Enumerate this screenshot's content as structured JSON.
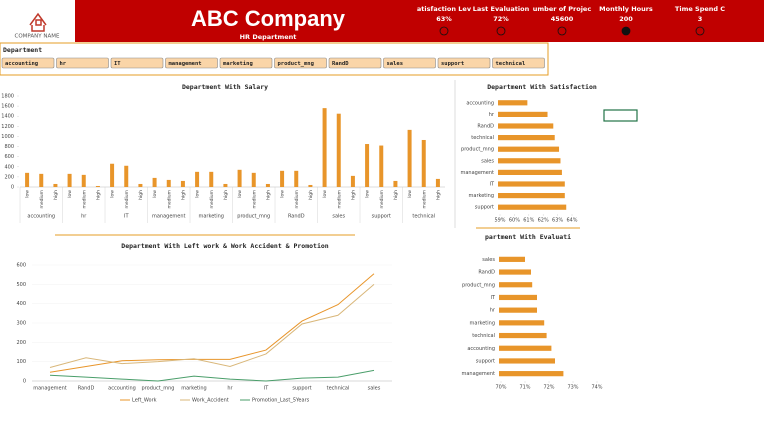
{
  "header": {
    "logo_text": "COMPANY NAME",
    "title": "ABC Company",
    "subtitle": "HR Department",
    "kpis": [
      {
        "label": "atisfaction Lev",
        "value": "63%"
      },
      {
        "label": "Last Evaluation",
        "value": "72%"
      },
      {
        "label": "umber of Projec",
        "value": "45600"
      },
      {
        "label": "Monthly Hours",
        "value": "200"
      },
      {
        "label": "Time Spend C",
        "value": "3"
      }
    ]
  },
  "slicer": {
    "title": "Department",
    "items": [
      "accounting",
      "hr",
      "IT",
      "management",
      "marketing",
      "product_mng",
      "RandD",
      "sales",
      "support",
      "technical"
    ]
  },
  "chart_data": [
    {
      "type": "bar",
      "title": "Department With Salary",
      "groups": [
        "accounting",
        "hr",
        "IT",
        "management",
        "marketing",
        "product_mng",
        "RandD",
        "sales",
        "support",
        "technical"
      ],
      "categories": [
        "low",
        "medium",
        "high",
        "low",
        "medium",
        "high",
        "low",
        "medium",
        "high",
        "low",
        "medium",
        "high",
        "low",
        "medium",
        "high",
        "low",
        "medium",
        "high",
        "low",
        "medium",
        "high",
        "low",
        "medium",
        "high",
        "low",
        "medium",
        "high",
        "low",
        "medium",
        "high"
      ],
      "values": [
        280,
        260,
        60,
        260,
        240,
        20,
        460,
        420,
        60,
        180,
        140,
        120,
        300,
        300,
        60,
        340,
        280,
        60,
        320,
        320,
        40,
        1560,
        1450,
        220,
        850,
        820,
        120,
        1130,
        930,
        160
      ],
      "color": "#e8952a",
      "ylim": [
        0,
        1800
      ],
      "yticks": [
        0,
        200,
        400,
        600,
        800,
        1000,
        1200,
        1400,
        1600,
        1800
      ]
    },
    {
      "type": "hbar",
      "title": "Department With Satisfaction",
      "categories": [
        "accounting",
        "hr",
        "RandD",
        "technical",
        "product_mng",
        "sales",
        "management",
        "IT",
        "marketing",
        "support"
      ],
      "values": [
        60.9,
        62.3,
        62.7,
        62.8,
        63.1,
        63.2,
        63.3,
        63.5,
        63.5,
        63.6
      ],
      "color": "#e8952a",
      "xlim": [
        59,
        64
      ],
      "xticks": [
        {
          "value": 59,
          "label": "59%"
        },
        {
          "value": 60,
          "label": "60%"
        },
        {
          "value": 61,
          "label": "61%"
        },
        {
          "value": 62,
          "label": "62%"
        },
        {
          "value": 63,
          "label": "63%"
        },
        {
          "value": 64,
          "label": "64%"
        }
      ]
    },
    {
      "type": "line",
      "title": "Department With Left work & Work Accident  & Promotion",
      "categories": [
        "management",
        "RandD",
        "accounting",
        "product_mng",
        "marketing",
        "hr",
        "IT",
        "support",
        "technical",
        "sales"
      ],
      "series": [
        {
          "name": "Left_Work",
          "color": "#e8952a",
          "values": [
            45,
            75,
            105,
            110,
            112,
            112,
            160,
            310,
            395,
            555
          ]
        },
        {
          "name": "Work_Accident",
          "color": "#d9b77a",
          "values": [
            70,
            120,
            90,
            100,
            115,
            75,
            140,
            295,
            340,
            500
          ]
        },
        {
          "name": "Promotion_Last_5Years",
          "color": "#4a9e6a",
          "values": [
            30,
            20,
            10,
            0,
            25,
            10,
            0,
            15,
            20,
            55
          ]
        }
      ],
      "ylim": [
        0,
        600
      ],
      "yticks": [
        0,
        100,
        200,
        300,
        400,
        500,
        600
      ]
    },
    {
      "type": "hbar",
      "title": "partment With Evaluati",
      "categories": [
        "sales",
        "RandD",
        "product_mng",
        "IT",
        "hr",
        "marketing",
        "technical",
        "accounting",
        "support",
        "management"
      ],
      "values": [
        71.0,
        71.25,
        71.3,
        71.5,
        71.5,
        71.8,
        71.9,
        72.1,
        72.25,
        72.6
      ],
      "color": "#e8952a",
      "xlim": [
        70,
        74
      ],
      "xticks": [
        {
          "value": 70,
          "label": "70%"
        },
        {
          "value": 71,
          "label": "71%"
        },
        {
          "value": 72,
          "label": "72%"
        },
        {
          "value": 73,
          "label": "73%"
        },
        {
          "value": 74,
          "label": "74%"
        }
      ]
    }
  ]
}
